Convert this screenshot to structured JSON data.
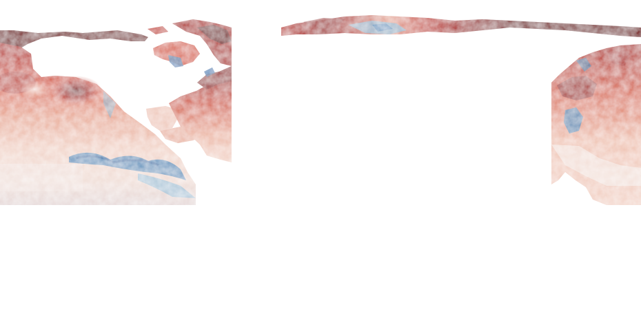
{
  "map": {
    "projection": "equirectangular",
    "colormap": {
      "name": "diverging-blue-white-red",
      "stops": [
        "#2f6fa8",
        "#8fbcd8",
        "#f4ecea",
        "#e8a48e",
        "#c9483a",
        "#7a0a10"
      ]
    },
    "ocean_mask_color": "#ffffff",
    "tiles_visible": [
      "north-pacific",
      "eastern-tropical-pacific",
      "gulf-of-mexico-caribbean",
      "western-north-atlantic",
      "hudson-bay",
      "arctic-ocean",
      "eastern-north-atlantic"
    ]
  }
}
